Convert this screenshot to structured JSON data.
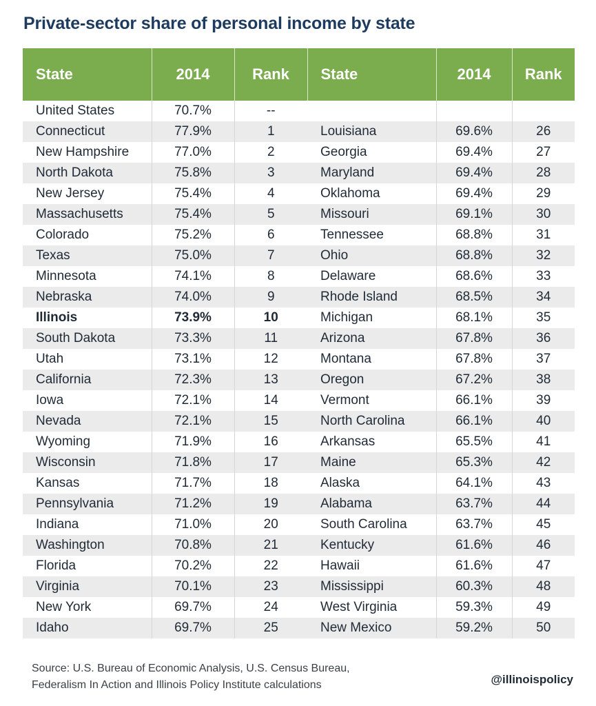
{
  "title": "Private-sector share of personal income by state",
  "headers": {
    "state": "State",
    "year": "2014",
    "rank": "Rank"
  },
  "chart_data": {
    "type": "table",
    "columns": [
      "State",
      "2014",
      "Rank"
    ],
    "left_rows": [
      {
        "state": "United States",
        "value": "70.7%",
        "rank": "--"
      },
      {
        "state": "Connecticut",
        "value": "77.9%",
        "rank": "1"
      },
      {
        "state": "New Hampshire",
        "value": "77.0%",
        "rank": "2"
      },
      {
        "state": "North Dakota",
        "value": "75.8%",
        "rank": "3"
      },
      {
        "state": "New Jersey",
        "value": "75.4%",
        "rank": "4"
      },
      {
        "state": "Massachusetts",
        "value": "75.4%",
        "rank": "5"
      },
      {
        "state": "Colorado",
        "value": "75.2%",
        "rank": "6"
      },
      {
        "state": "Texas",
        "value": "75.0%",
        "rank": "7"
      },
      {
        "state": "Minnesota",
        "value": "74.1%",
        "rank": "8"
      },
      {
        "state": "Nebraska",
        "value": "74.0%",
        "rank": "9"
      },
      {
        "state": "Illinois",
        "value": "73.9%",
        "rank": "10",
        "highlight": true
      },
      {
        "state": "South Dakota",
        "value": "73.3%",
        "rank": "11"
      },
      {
        "state": "Utah",
        "value": "73.1%",
        "rank": "12"
      },
      {
        "state": "California",
        "value": "72.3%",
        "rank": "13"
      },
      {
        "state": "Iowa",
        "value": "72.1%",
        "rank": "14"
      },
      {
        "state": "Nevada",
        "value": "72.1%",
        "rank": "15"
      },
      {
        "state": "Wyoming",
        "value": "71.9%",
        "rank": "16"
      },
      {
        "state": "Wisconsin",
        "value": "71.8%",
        "rank": "17"
      },
      {
        "state": "Kansas",
        "value": "71.7%",
        "rank": "18"
      },
      {
        "state": "Pennsylvania",
        "value": "71.2%",
        "rank": "19"
      },
      {
        "state": "Indiana",
        "value": "71.0%",
        "rank": "20"
      },
      {
        "state": "Washington",
        "value": "70.8%",
        "rank": "21"
      },
      {
        "state": "Florida",
        "value": "70.2%",
        "rank": "22"
      },
      {
        "state": "Virginia",
        "value": "70.1%",
        "rank": "23"
      },
      {
        "state": "New York",
        "value": "69.7%",
        "rank": "24"
      },
      {
        "state": "Idaho",
        "value": "69.7%",
        "rank": "25"
      }
    ],
    "right_rows": [
      {
        "state": "",
        "value": "",
        "rank": ""
      },
      {
        "state": "Louisiana",
        "value": "69.6%",
        "rank": "26"
      },
      {
        "state": "Georgia",
        "value": "69.4%",
        "rank": "27"
      },
      {
        "state": "Maryland",
        "value": "69.4%",
        "rank": "28"
      },
      {
        "state": "Oklahoma",
        "value": "69.4%",
        "rank": "29"
      },
      {
        "state": "Missouri",
        "value": "69.1%",
        "rank": "30"
      },
      {
        "state": "Tennessee",
        "value": "68.8%",
        "rank": "31"
      },
      {
        "state": "Ohio",
        "value": "68.8%",
        "rank": "32"
      },
      {
        "state": "Delaware",
        "value": "68.6%",
        "rank": "33"
      },
      {
        "state": "Rhode Island",
        "value": "68.5%",
        "rank": "34"
      },
      {
        "state": "Michigan",
        "value": "68.1%",
        "rank": "35"
      },
      {
        "state": "Arizona",
        "value": "67.8%",
        "rank": "36"
      },
      {
        "state": "Montana",
        "value": "67.8%",
        "rank": "37"
      },
      {
        "state": "Oregon",
        "value": "67.2%",
        "rank": "38"
      },
      {
        "state": "Vermont",
        "value": "66.1%",
        "rank": "39"
      },
      {
        "state": "North Carolina",
        "value": "66.1%",
        "rank": "40"
      },
      {
        "state": "Arkansas",
        "value": "65.5%",
        "rank": "41"
      },
      {
        "state": "Maine",
        "value": "65.3%",
        "rank": "42"
      },
      {
        "state": "Alaska",
        "value": "64.1%",
        "rank": "43"
      },
      {
        "state": "Alabama",
        "value": "63.7%",
        "rank": "44"
      },
      {
        "state": "South Carolina",
        "value": "63.7%",
        "rank": "45"
      },
      {
        "state": "Kentucky",
        "value": "61.6%",
        "rank": "46"
      },
      {
        "state": "Hawaii",
        "value": "61.6%",
        "rank": "47"
      },
      {
        "state": "Mississippi",
        "value": "60.3%",
        "rank": "48"
      },
      {
        "state": "West Virginia",
        "value": "59.3%",
        "rank": "49"
      },
      {
        "state": "New Mexico",
        "value": "59.2%",
        "rank": "50"
      }
    ]
  },
  "source_line1": "Source: U.S. Bureau of Economic Analysis, U.S. Census Bureau,",
  "source_line2": "Federalism In Action and Illinois Policy Institute calculations",
  "handle": "@illinoispolicy",
  "colors": {
    "header": "#7bac4e",
    "title": "#1d3a5f",
    "stripe": "#ebebeb"
  }
}
